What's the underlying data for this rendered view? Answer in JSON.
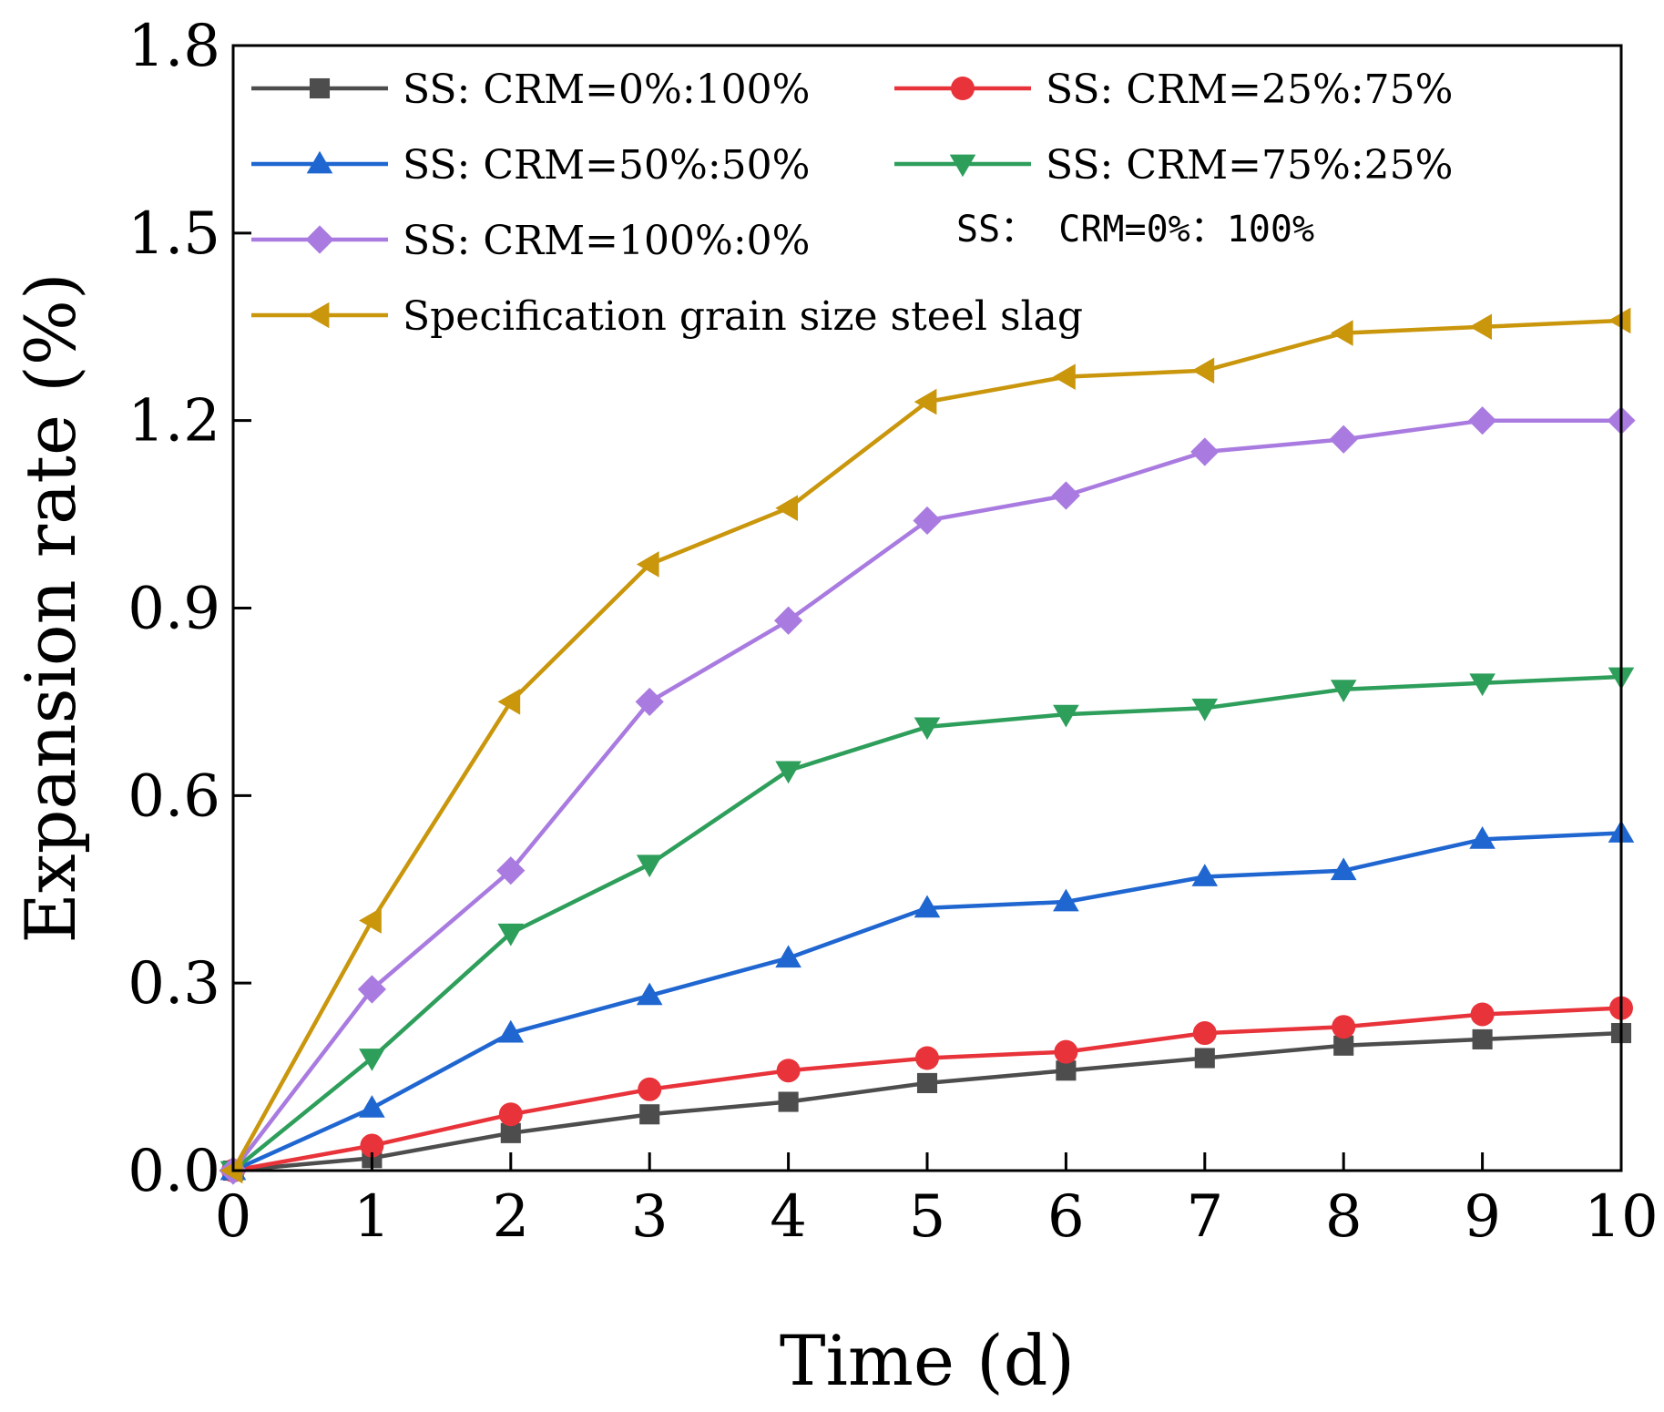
{
  "chart_data": {
    "type": "line",
    "title": "",
    "xlabel": "Time (d)",
    "ylabel": "Expansion rate  (%)",
    "xlim": [
      0,
      10
    ],
    "ylim": [
      0,
      1.8
    ],
    "x_ticks": [
      "0",
      "1",
      "2",
      "3",
      "4",
      "5",
      "6",
      "7",
      "8",
      "9",
      "10"
    ],
    "y_ticks": [
      "0.0",
      "0.3",
      "0.6",
      "0.9",
      "1.2",
      "1.5",
      "1.8"
    ],
    "grid": false,
    "legend_position": "top-left",
    "x": [
      0,
      1,
      2,
      3,
      4,
      5,
      6,
      7,
      8,
      9,
      10
    ],
    "series": [
      {
        "name": "SS: CRM=0%:100%",
        "color": "#4d4d4d",
        "marker": "square",
        "values": [
          0,
          0.02,
          0.06,
          0.09,
          0.11,
          0.14,
          0.16,
          0.18,
          0.2,
          0.21,
          0.22
        ]
      },
      {
        "name": "SS: CRM=25%:75%",
        "color": "#e8333a",
        "marker": "circle",
        "values": [
          0,
          0.04,
          0.09,
          0.13,
          0.16,
          0.18,
          0.19,
          0.22,
          0.23,
          0.25,
          0.26
        ]
      },
      {
        "name": "SS: CRM=50%:50%",
        "color": "#1f66d1",
        "marker": "triangle-up",
        "values": [
          0,
          0.1,
          0.22,
          0.28,
          0.34,
          0.42,
          0.43,
          0.47,
          0.48,
          0.53,
          0.54
        ]
      },
      {
        "name": "SS: CRM=75%:25%",
        "color": "#2e9e5b",
        "marker": "triangle-down",
        "values": [
          0,
          0.18,
          0.38,
          0.49,
          0.64,
          0.71,
          0.73,
          0.74,
          0.77,
          0.78,
          0.79
        ]
      },
      {
        "name": "SS: CRM=100%:0%",
        "color": "#a97be0",
        "marker": "diamond",
        "values": [
          0,
          0.29,
          0.48,
          0.75,
          0.88,
          1.04,
          1.08,
          1.15,
          1.17,
          1.2,
          1.2
        ]
      },
      {
        "name": "Specification grain size steel slag",
        "color": "#c9960c",
        "marker": "triangle-left",
        "values": [
          0,
          0.4,
          0.75,
          0.97,
          1.06,
          1.23,
          1.27,
          1.28,
          1.34,
          1.35,
          1.36
        ]
      }
    ],
    "annotation": "SS：  CRM=0%：100%"
  }
}
